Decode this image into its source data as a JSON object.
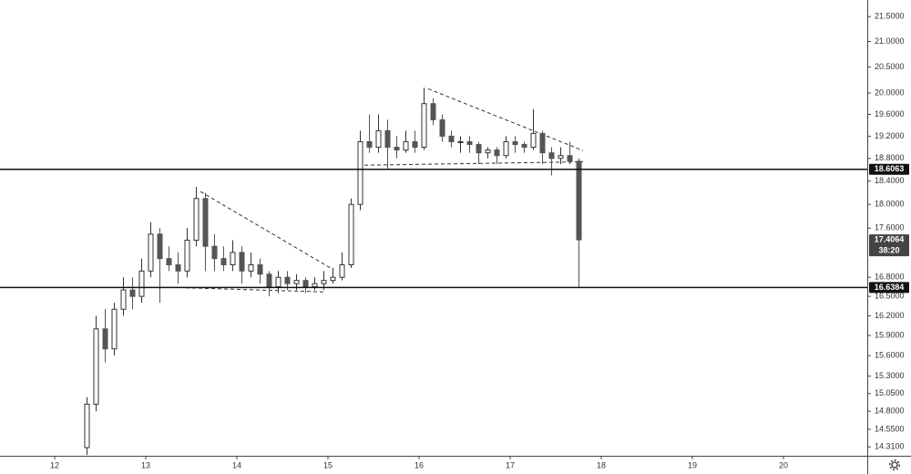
{
  "chart_data": {
    "type": "candlestick",
    "log_scale": true,
    "up_color": "#ffffff",
    "down_color": "#555555",
    "xlim": [
      11.4,
      20.92
    ],
    "ylim": [
      14.19,
      21.84
    ],
    "xticks": [
      12,
      13,
      14,
      15,
      16,
      17,
      18,
      19,
      20
    ],
    "yticks": [
      {
        "value": 21.5,
        "label": "21.5000"
      },
      {
        "value": 21,
        "label": "21.0000"
      },
      {
        "value": 20.5,
        "label": "20.5000"
      },
      {
        "value": 20,
        "label": "20.0000"
      },
      {
        "value": 19.6,
        "label": "19.6000"
      },
      {
        "value": 19.2,
        "label": "19.2000"
      },
      {
        "value": 18.8,
        "label": "18.8000"
      },
      {
        "value": 18.4,
        "label": "18.4000"
      },
      {
        "value": 18,
        "label": "18.0000"
      },
      {
        "value": 17.6,
        "label": "17.6000"
      },
      {
        "value": 16.8,
        "label": "16.8000"
      },
      {
        "value": 16.5,
        "label": "16.5000"
      },
      {
        "value": 16.2,
        "label": "16.2000"
      },
      {
        "value": 15.9,
        "label": "15.9000"
      },
      {
        "value": 15.6,
        "label": "15.6000"
      },
      {
        "value": 15.3,
        "label": "15.3000"
      },
      {
        "value": 15.05,
        "label": "15.0500"
      },
      {
        "value": 14.8,
        "label": "14.8000"
      },
      {
        "value": 14.55,
        "label": "14.5500"
      },
      {
        "value": 14.31,
        "label": "14.3100"
      }
    ],
    "x": [
      12.35,
      12.45,
      12.55,
      12.65,
      12.75,
      12.85,
      12.95,
      13.05,
      13.15,
      13.25,
      13.35,
      13.45,
      13.55,
      13.65,
      13.75,
      13.85,
      13.95,
      14.05,
      14.15,
      14.25,
      14.35,
      14.45,
      14.55,
      14.65,
      14.75,
      14.85,
      14.95,
      15.05,
      15.15,
      15.25,
      15.35,
      15.45,
      15.55,
      15.65,
      15.75,
      15.85,
      15.95,
      16.05,
      16.15,
      16.25,
      16.35,
      16.45,
      16.55,
      16.65,
      16.75,
      16.85,
      16.95,
      17.05,
      17.15,
      17.25,
      17.35,
      17.45,
      17.55,
      17.65,
      17.75
    ],
    "open": [
      14.3,
      14.9,
      16.0,
      15.7,
      16.3,
      16.6,
      16.5,
      16.9,
      17.5,
      17.1,
      17.0,
      16.9,
      17.4,
      18.1,
      17.3,
      17.1,
      17.0,
      17.2,
      16.9,
      17.0,
      16.85,
      16.65,
      16.8,
      16.7,
      16.75,
      16.65,
      16.7,
      16.75,
      16.8,
      17.0,
      18.0,
      19.1,
      19.0,
      19.3,
      19.0,
      18.95,
      19.1,
      19.0,
      19.8,
      19.5,
      19.2,
      19.1,
      19.1,
      19.05,
      18.9,
      18.95,
      18.85,
      19.1,
      19.05,
      19.0,
      19.25,
      18.9,
      18.8,
      18.85,
      18.75
    ],
    "high": [
      15.0,
      16.2,
      16.3,
      16.4,
      16.8,
      16.8,
      17.1,
      17.7,
      17.6,
      17.3,
      17.2,
      17.6,
      18.3,
      18.2,
      17.5,
      17.3,
      17.4,
      17.3,
      17.2,
      17.1,
      16.9,
      16.9,
      16.9,
      16.85,
      16.8,
      16.8,
      16.9,
      16.95,
      17.2,
      18.1,
      19.3,
      19.6,
      19.6,
      19.5,
      19.2,
      19.3,
      19.3,
      20.1,
      19.9,
      19.6,
      19.3,
      19.2,
      19.2,
      19.1,
      19.0,
      19.0,
      19.2,
      19.2,
      19.1,
      19.7,
      19.3,
      19.0,
      19.0,
      19.1,
      18.8
    ],
    "low": [
      14.2,
      14.8,
      15.5,
      15.6,
      16.2,
      16.3,
      16.4,
      16.8,
      16.4,
      16.9,
      16.7,
      16.8,
      17.3,
      16.9,
      16.9,
      16.9,
      16.9,
      16.7,
      16.8,
      16.7,
      16.5,
      16.55,
      16.6,
      16.6,
      16.55,
      16.6,
      16.6,
      16.7,
      16.75,
      16.95,
      17.9,
      18.9,
      18.9,
      18.6,
      18.8,
      18.9,
      18.9,
      18.95,
      19.4,
      19.1,
      19.0,
      18.9,
      18.9,
      18.7,
      18.8,
      18.7,
      18.8,
      18.9,
      18.9,
      18.95,
      18.7,
      18.5,
      18.7,
      18.7,
      16.64
    ],
    "close": [
      14.9,
      16.0,
      15.7,
      16.3,
      16.6,
      16.5,
      16.9,
      17.5,
      17.1,
      17.0,
      16.9,
      17.4,
      18.1,
      17.3,
      17.1,
      17.0,
      17.2,
      16.9,
      17.0,
      16.85,
      16.65,
      16.8,
      16.7,
      16.75,
      16.65,
      16.7,
      16.75,
      16.8,
      17.0,
      18.0,
      19.1,
      19.0,
      19.3,
      19.0,
      18.95,
      19.1,
      19.0,
      19.8,
      19.5,
      19.2,
      19.1,
      19.1,
      19.05,
      18.9,
      18.95,
      18.85,
      19.1,
      19.05,
      19.0,
      19.25,
      18.9,
      18.8,
      18.85,
      18.75,
      17.4064
    ],
    "countdown": "38:20",
    "hlines": [
      18.6063,
      16.6384
    ],
    "trendlines": [
      {
        "x": [
          13.6,
          15.05
        ],
        "y": [
          18.22,
          16.93
        ]
      },
      {
        "x": [
          13.3,
          14.95
        ],
        "y": [
          16.64,
          16.57
        ]
      },
      {
        "x": [
          16.1,
          17.8
        ],
        "y": [
          20.08,
          18.94
        ]
      },
      {
        "x": [
          15.4,
          17.8
        ],
        "y": [
          18.68,
          18.74
        ]
      }
    ]
  }
}
